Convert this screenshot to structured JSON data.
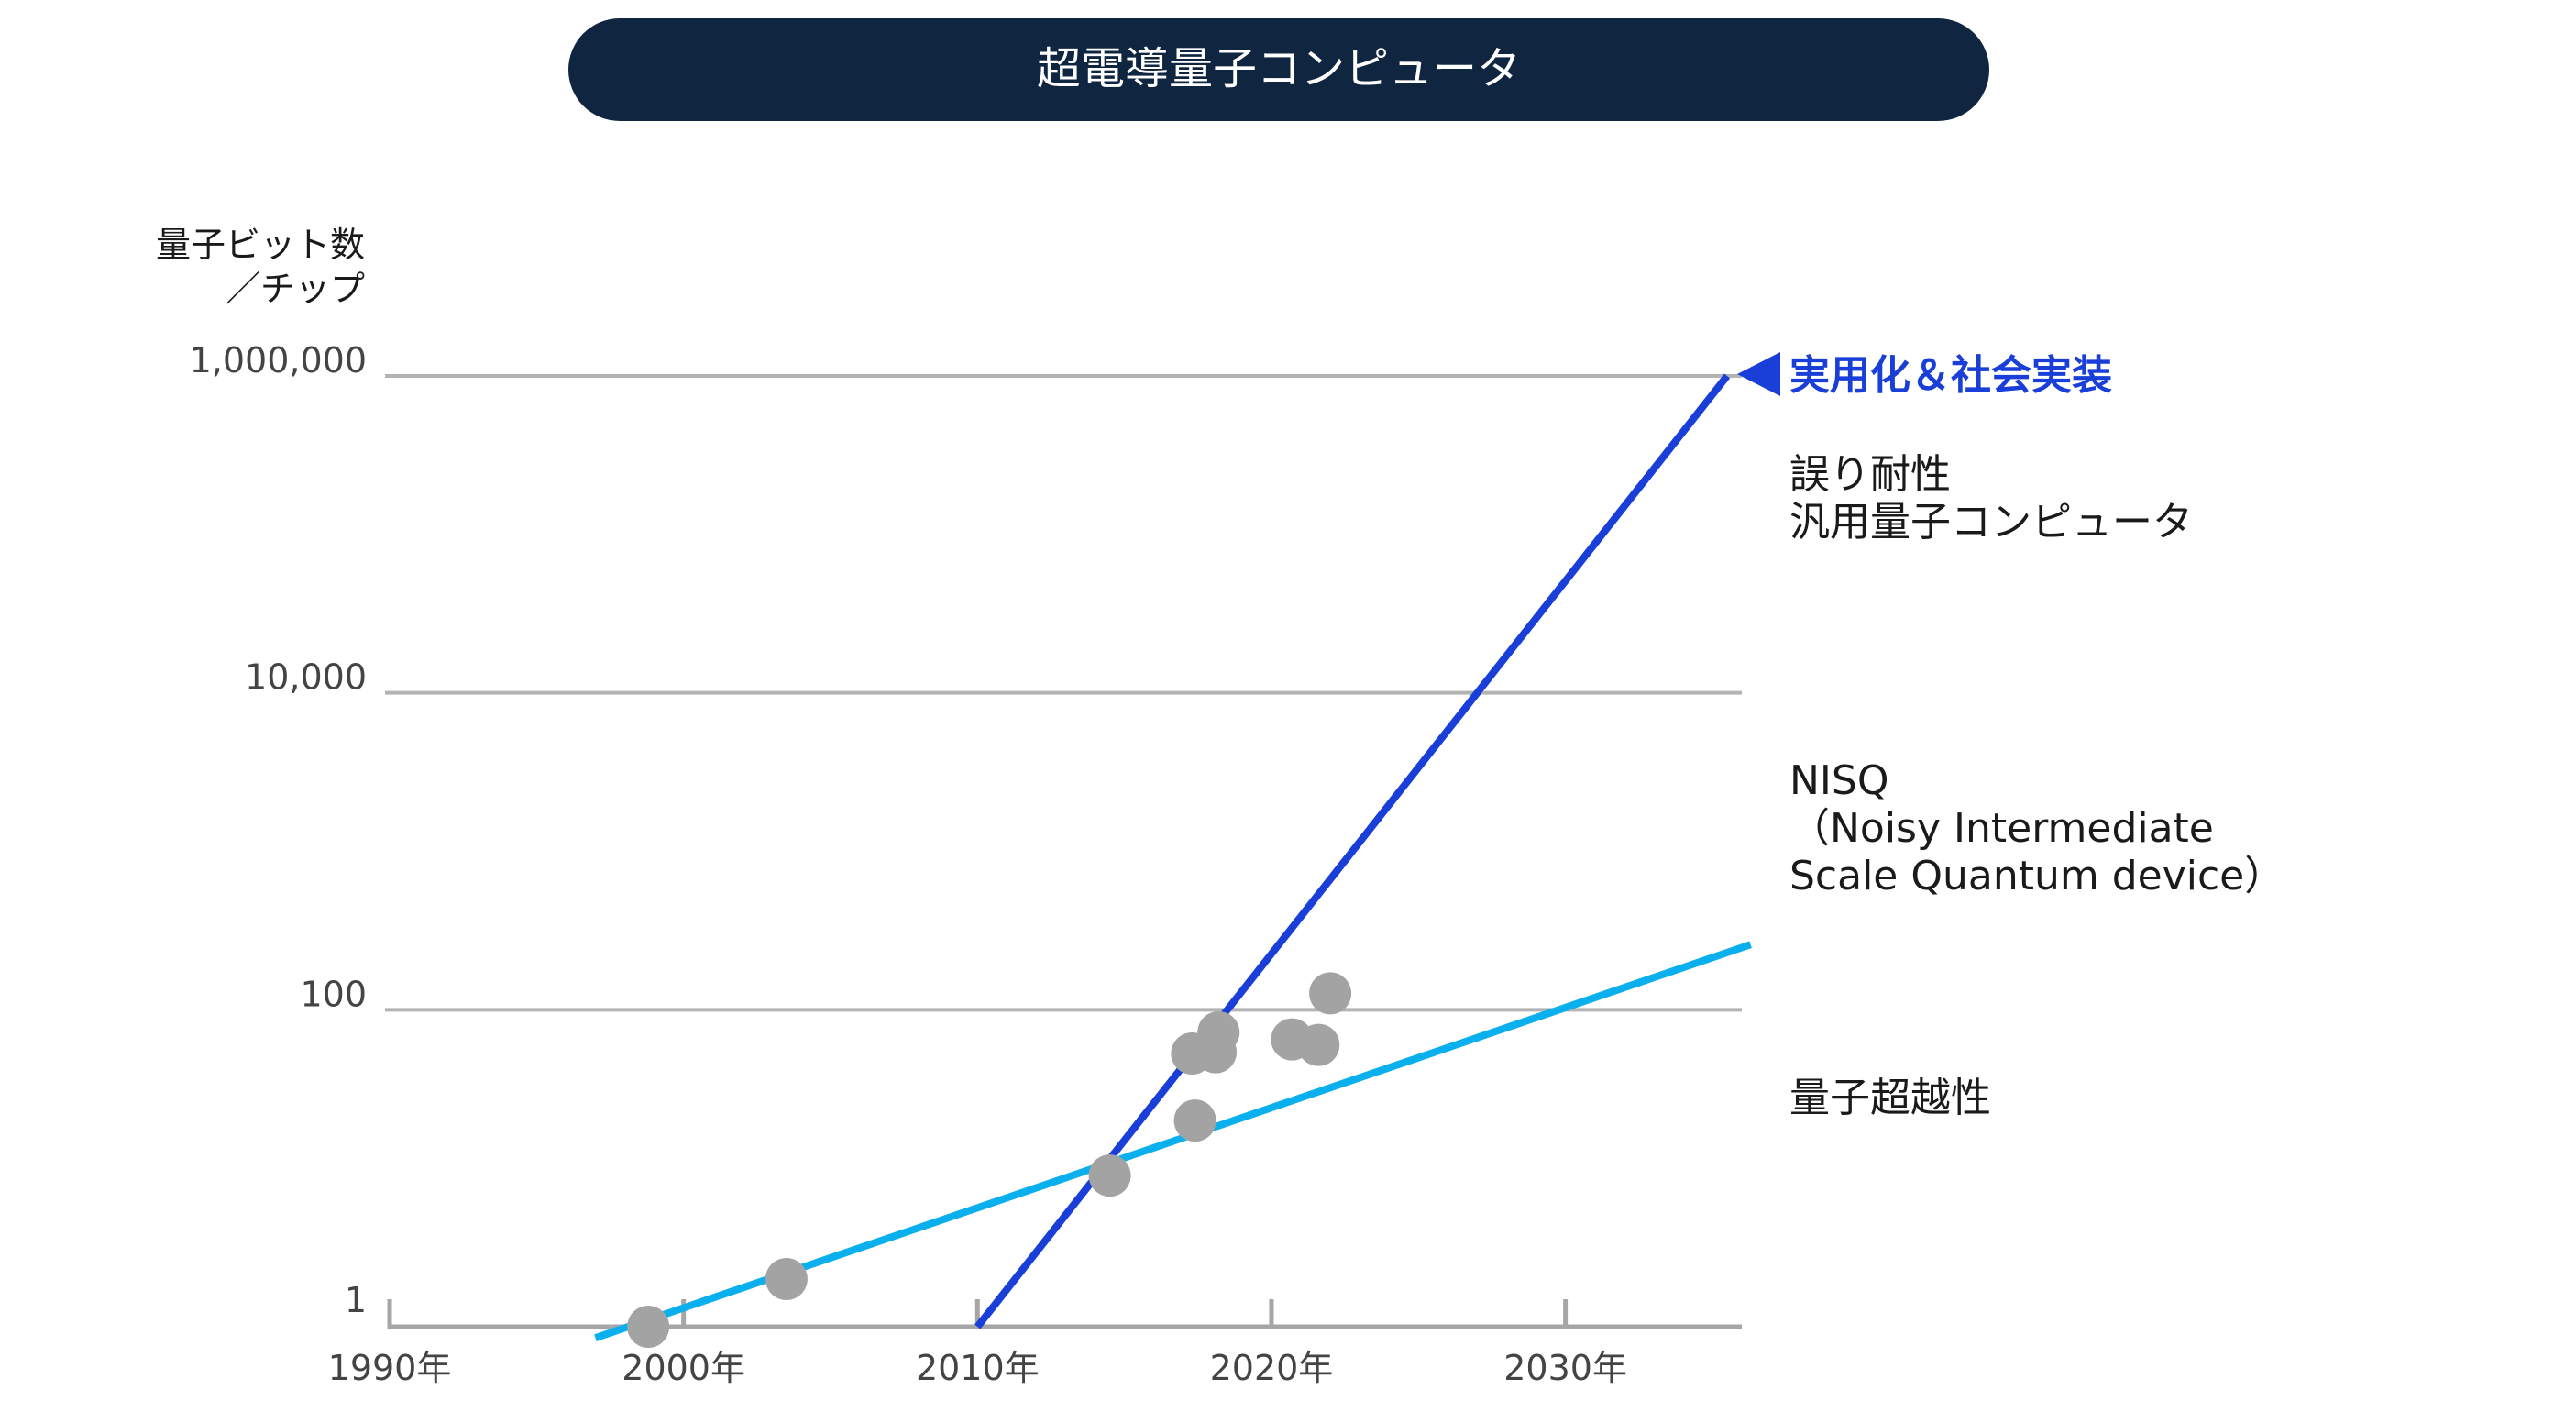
{
  "chart_data": {
    "type": "scatter",
    "title": "超電導量子コンピュータ",
    "ylabel_lines": [
      "量子ビット数",
      "／チップ"
    ],
    "yscale": "log",
    "ylim": [
      1,
      1000000
    ],
    "y_ticks": [
      {
        "value": 1,
        "label": "1"
      },
      {
        "value": 100,
        "label": "100"
      },
      {
        "value": 10000,
        "label": "10,000"
      },
      {
        "value": 1000000,
        "label": "1,000,000"
      }
    ],
    "xlim": [
      1990,
      2036
    ],
    "x_ticks": [
      {
        "value": 1990,
        "label": "1990年"
      },
      {
        "value": 2000,
        "label": "2000年"
      },
      {
        "value": 2010,
        "label": "2010年"
      },
      {
        "value": 2020,
        "label": "2020年"
      },
      {
        "value": 2030,
        "label": "2030年"
      }
    ],
    "points": [
      {
        "x": 1998.8,
        "y": 1
      },
      {
        "x": 2003.5,
        "y": 2
      },
      {
        "x": 2014.5,
        "y": 9
      },
      {
        "x": 2017.4,
        "y": 20
      },
      {
        "x": 2017.3,
        "y": 53
      },
      {
        "x": 2018.1,
        "y": 54
      },
      {
        "x": 2018.2,
        "y": 72
      },
      {
        "x": 2020.7,
        "y": 65
      },
      {
        "x": 2021.6,
        "y": 60
      },
      {
        "x": 2022.0,
        "y": 127
      }
    ],
    "series": [
      {
        "name": "NISQ trend",
        "color": "#0ab0ee",
        "points": [
          [
            1997.0,
            0.85
          ],
          [
            2036.3,
            258
          ]
        ]
      },
      {
        "name": "誤り耐性汎用量子コンピュータ trend",
        "color": "#1a3fd8",
        "points": [
          [
            2010.0,
            1
          ],
          [
            2035.5,
            1000000
          ]
        ]
      }
    ],
    "point_color": "#a3a3a3",
    "annotations": {
      "target_label": "実用化＆社会実装",
      "ftqc_lines": [
        "誤り耐性",
        "汎用量子コンピュータ"
      ],
      "nisq_lines": [
        "NISQ",
        "（Noisy Intermediate",
        "Scale Quantum device）"
      ],
      "supremacy": "量子超越性"
    },
    "accent_color": "#1a3fd8"
  }
}
